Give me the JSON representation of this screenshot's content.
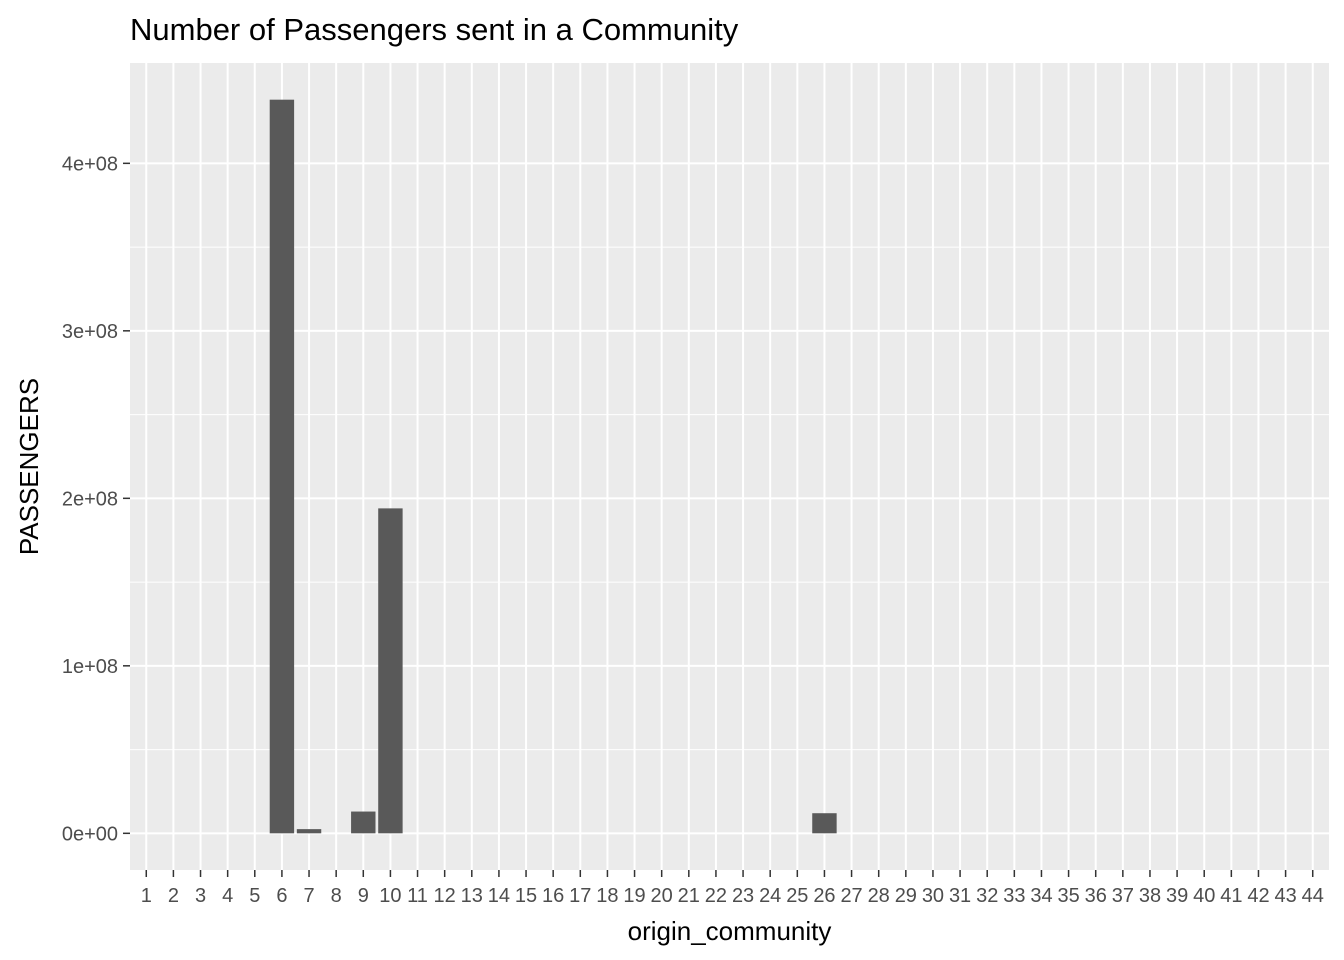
{
  "chart_data": {
    "type": "bar",
    "title": "Number of Passengers sent in a Community",
    "xlabel": "origin_community",
    "ylabel": "PASSENGERS",
    "categories": [
      "1",
      "2",
      "3",
      "4",
      "5",
      "6",
      "7",
      "8",
      "9",
      "10",
      "11",
      "12",
      "13",
      "14",
      "15",
      "16",
      "17",
      "18",
      "19",
      "20",
      "21",
      "22",
      "23",
      "24",
      "25",
      "26",
      "27",
      "28",
      "29",
      "30",
      "31",
      "32",
      "33",
      "34",
      "35",
      "36",
      "37",
      "38",
      "39",
      "40",
      "41",
      "42",
      "43",
      "44"
    ],
    "values": [
      0,
      0,
      0,
      0,
      0,
      438000000,
      2500000,
      0,
      13000000,
      194000000,
      0,
      0,
      0,
      0,
      0,
      0,
      0,
      0,
      0,
      0,
      0,
      0,
      0,
      0,
      0,
      12000000,
      0,
      0,
      0,
      0,
      0,
      0,
      0,
      0,
      0,
      0,
      0,
      0,
      0,
      0,
      0,
      0,
      0,
      0
    ],
    "yticks": [
      0,
      100000000,
      200000000,
      300000000,
      400000000
    ],
    "ytick_labels": [
      "0e+00",
      "1e+08",
      "2e+08",
      "3e+08",
      "4e+08"
    ],
    "ylim": [
      -21900000,
      459900000
    ],
    "grid": true,
    "colors": {
      "panel": "#ebebeb",
      "grid": "#ffffff",
      "bar": "#595959",
      "tick": "#333333"
    }
  }
}
